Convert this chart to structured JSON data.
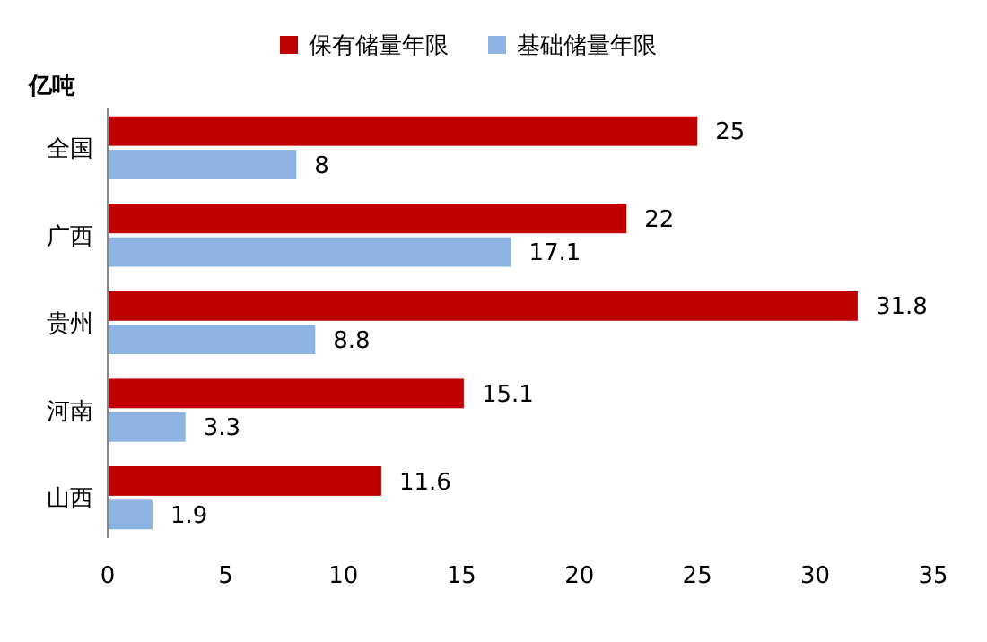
{
  "chart_data": {
    "type": "bar",
    "orientation": "horizontal",
    "ylabel": "亿吨",
    "categories": [
      "全国",
      "广西",
      "贵州",
      "河南",
      "山西"
    ],
    "series": [
      {
        "name": "保有储量年限",
        "color": "#c00000",
        "values": [
          25,
          22,
          31.8,
          15.1,
          11.6
        ]
      },
      {
        "name": "基础储量年限",
        "color": "#8db4e2",
        "values": [
          8,
          17.1,
          8.8,
          3.3,
          1.9
        ]
      }
    ],
    "xlim": [
      0,
      35
    ],
    "xticks": [
      0,
      5,
      10,
      15,
      20,
      25,
      30,
      35
    ],
    "grid": false,
    "legend": "top",
    "data_labels": true
  }
}
